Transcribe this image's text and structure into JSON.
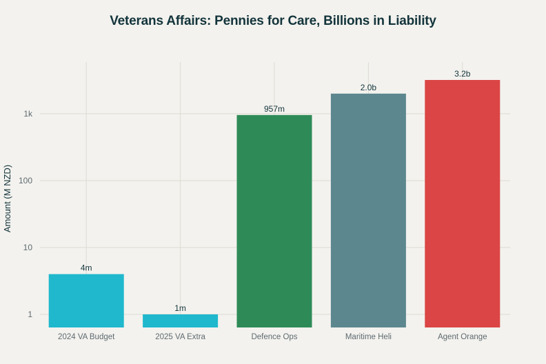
{
  "chart_data": {
    "type": "bar",
    "title": "Veterans Affairs: Pennies for Care, Billions in Liability",
    "xlabel": "",
    "ylabel": "Amount (M NZD)",
    "yscale": "log",
    "ylim": [
      0.8,
      5000
    ],
    "yticks": [
      1,
      10,
      100,
      1000
    ],
    "ytick_labels": [
      "1",
      "10",
      "100",
      "1k"
    ],
    "grid": true,
    "legend": "none",
    "categories": [
      "2024 VA Budget",
      "2025 VA Extra",
      "Defence Ops",
      "Maritime Heli",
      "Agent Orange"
    ],
    "values": [
      4,
      1,
      957,
      2000,
      3200
    ],
    "data_labels": [
      "4m",
      "1m",
      "957m",
      "2.0b",
      "3.2b"
    ],
    "colors": [
      "#1fb8cd",
      "#1fb8cd",
      "#2e8b57",
      "#5d878f",
      "#db4545"
    ]
  }
}
